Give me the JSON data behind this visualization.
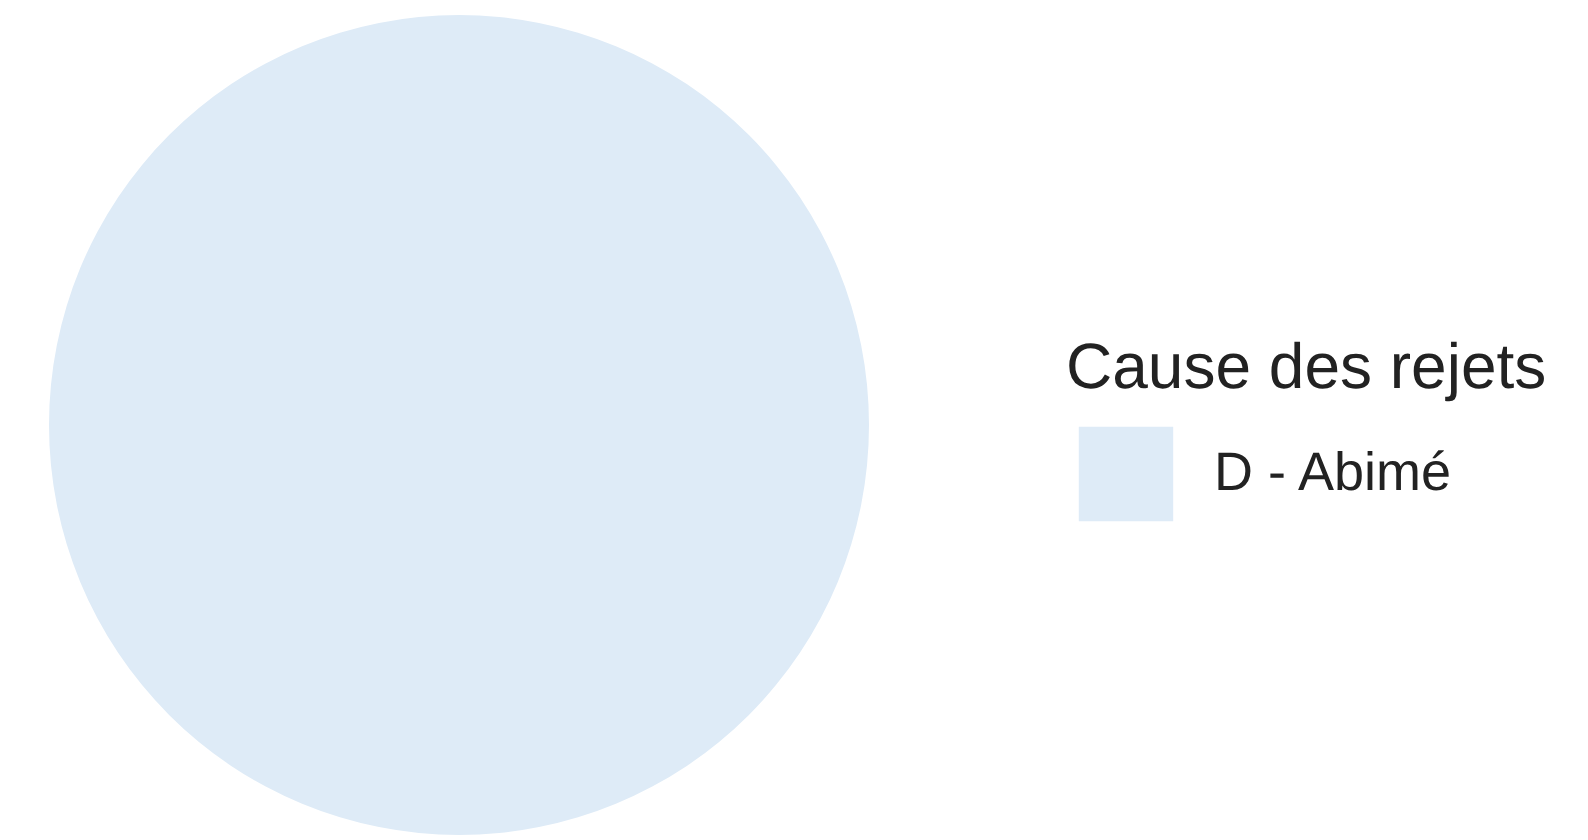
{
  "chart_data": {
    "type": "pie",
    "legend_title": "Cause des rejets",
    "categories": [
      "D - Abimé"
    ],
    "values": [
      100
    ],
    "colors": [
      "#deebf7"
    ],
    "legend": "right"
  }
}
